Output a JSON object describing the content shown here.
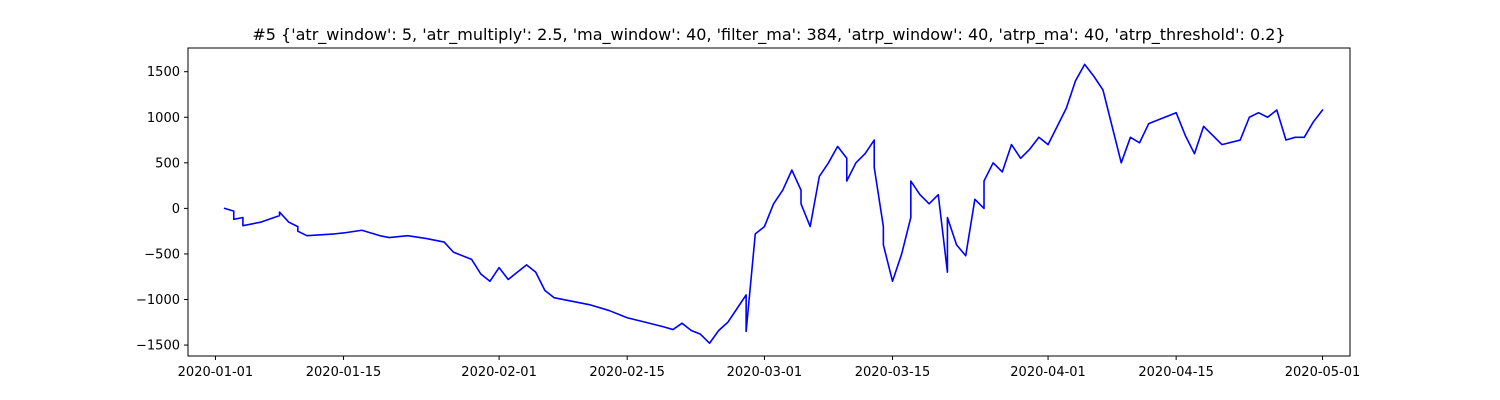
{
  "chart_data": {
    "type": "line",
    "title": "#5 {'atr_window': 5, 'atr_multiply': 2.5, 'ma_window': 40, 'filter_ma': 384, 'atrp_window': 40, 'atrp_ma': 40, 'atrp_threshold': 0.2}",
    "xlabel": "",
    "ylabel": "",
    "xlim": [
      "2019-12-29",
      "2020-05-04"
    ],
    "ylim": [
      -1620,
      1760
    ],
    "x_ticks": [
      "2020-01-01",
      "2020-01-15",
      "2020-02-01",
      "2020-02-15",
      "2020-03-01",
      "2020-03-15",
      "2020-04-01",
      "2020-04-15",
      "2020-05-01"
    ],
    "y_ticks": [
      -1500,
      -1000,
      -500,
      0,
      500,
      1000,
      1500
    ],
    "grid": false,
    "color": "#0000ff",
    "series": [
      {
        "points": [
          [
            "2020-01-02",
            0
          ],
          [
            "2020-01-03",
            -30
          ],
          [
            "2020-01-03",
            -120
          ],
          [
            "2020-01-04",
            -100
          ],
          [
            "2020-01-04",
            -190
          ],
          [
            "2020-01-06",
            -150
          ],
          [
            "2020-01-08",
            -80
          ],
          [
            "2020-01-08",
            -40
          ],
          [
            "2020-01-09",
            -150
          ],
          [
            "2020-01-10",
            -200
          ],
          [
            "2020-01-10",
            -250
          ],
          [
            "2020-01-11",
            -300
          ],
          [
            "2020-01-14",
            -280
          ],
          [
            "2020-01-15",
            -270
          ],
          [
            "2020-01-17",
            -240
          ],
          [
            "2020-01-19",
            -300
          ],
          [
            "2020-01-20",
            -320
          ],
          [
            "2020-01-22",
            -300
          ],
          [
            "2020-01-24",
            -330
          ],
          [
            "2020-01-26",
            -370
          ],
          [
            "2020-01-27",
            -480
          ],
          [
            "2020-01-29",
            -560
          ],
          [
            "2020-01-30",
            -720
          ],
          [
            "2020-01-31",
            -800
          ],
          [
            "2020-02-01",
            -650
          ],
          [
            "2020-02-02",
            -780
          ],
          [
            "2020-02-03",
            -700
          ],
          [
            "2020-02-04",
            -620
          ],
          [
            "2020-02-05",
            -700
          ],
          [
            "2020-02-06",
            -900
          ],
          [
            "2020-02-07",
            -980
          ],
          [
            "2020-02-09",
            -1020
          ],
          [
            "2020-02-11",
            -1060
          ],
          [
            "2020-02-13",
            -1120
          ],
          [
            "2020-02-15",
            -1200
          ],
          [
            "2020-02-17",
            -1250
          ],
          [
            "2020-02-19",
            -1300
          ],
          [
            "2020-02-20",
            -1330
          ],
          [
            "2020-02-21",
            -1260
          ],
          [
            "2020-02-22",
            -1340
          ],
          [
            "2020-02-23",
            -1380
          ],
          [
            "2020-02-24",
            -1480
          ],
          [
            "2020-02-25",
            -1340
          ],
          [
            "2020-02-26",
            -1250
          ],
          [
            "2020-02-27",
            -1100
          ],
          [
            "2020-02-28",
            -950
          ],
          [
            "2020-02-28",
            -1350
          ],
          [
            "2020-02-29",
            -280
          ],
          [
            "2020-03-01",
            -200
          ],
          [
            "2020-03-02",
            50
          ],
          [
            "2020-03-03",
            200
          ],
          [
            "2020-03-04",
            420
          ],
          [
            "2020-03-05",
            200
          ],
          [
            "2020-03-05",
            50
          ],
          [
            "2020-03-06",
            -200
          ],
          [
            "2020-03-07",
            350
          ],
          [
            "2020-03-08",
            500
          ],
          [
            "2020-03-09",
            680
          ],
          [
            "2020-03-10",
            550
          ],
          [
            "2020-03-10",
            300
          ],
          [
            "2020-03-11",
            500
          ],
          [
            "2020-03-12",
            600
          ],
          [
            "2020-03-13",
            750
          ],
          [
            "2020-03-13",
            450
          ],
          [
            "2020-03-14",
            -200
          ],
          [
            "2020-03-14",
            -400
          ],
          [
            "2020-03-15",
            -800
          ],
          [
            "2020-03-16",
            -500
          ],
          [
            "2020-03-17",
            -100
          ],
          [
            "2020-03-17",
            300
          ],
          [
            "2020-03-18",
            150
          ],
          [
            "2020-03-19",
            50
          ],
          [
            "2020-03-20",
            150
          ],
          [
            "2020-03-21",
            -700
          ],
          [
            "2020-03-21",
            -100
          ],
          [
            "2020-03-22",
            -400
          ],
          [
            "2020-03-23",
            -520
          ],
          [
            "2020-03-24",
            100
          ],
          [
            "2020-03-25",
            0
          ],
          [
            "2020-03-25",
            300
          ],
          [
            "2020-03-26",
            500
          ],
          [
            "2020-03-27",
            400
          ],
          [
            "2020-03-28",
            700
          ],
          [
            "2020-03-29",
            550
          ],
          [
            "2020-03-30",
            650
          ],
          [
            "2020-03-31",
            780
          ],
          [
            "2020-04-01",
            700
          ],
          [
            "2020-04-02",
            900
          ],
          [
            "2020-04-03",
            1100
          ],
          [
            "2020-04-04",
            1400
          ],
          [
            "2020-04-05",
            1580
          ],
          [
            "2020-04-06",
            1450
          ],
          [
            "2020-04-07",
            1300
          ],
          [
            "2020-04-08",
            900
          ],
          [
            "2020-04-09",
            500
          ],
          [
            "2020-04-10",
            780
          ],
          [
            "2020-04-11",
            720
          ],
          [
            "2020-04-12",
            930
          ],
          [
            "2020-04-15",
            1050
          ],
          [
            "2020-04-16",
            800
          ],
          [
            "2020-04-17",
            600
          ],
          [
            "2020-04-18",
            900
          ],
          [
            "2020-04-19",
            800
          ],
          [
            "2020-04-20",
            700
          ],
          [
            "2020-04-22",
            750
          ],
          [
            "2020-04-23",
            1000
          ],
          [
            "2020-04-24",
            1050
          ],
          [
            "2020-04-25",
            1000
          ],
          [
            "2020-04-26",
            1080
          ],
          [
            "2020-04-27",
            750
          ],
          [
            "2020-04-28",
            780
          ],
          [
            "2020-04-29",
            780
          ],
          [
            "2020-04-30",
            950
          ],
          [
            "2020-05-01",
            1080
          ]
        ]
      }
    ]
  }
}
